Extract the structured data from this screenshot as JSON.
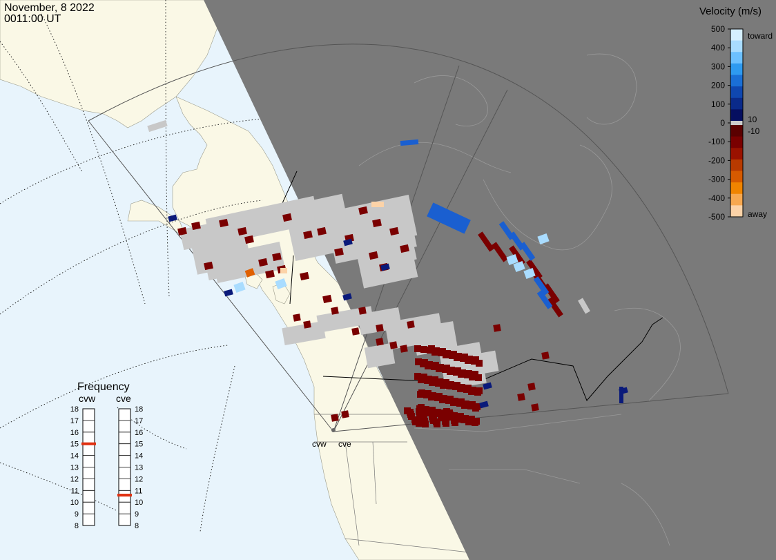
{
  "header": {
    "date": "November, 8 2022",
    "time": "0011:00 UT"
  },
  "velocity_scale": {
    "title": "Velocity (m/s)",
    "ticks": [
      "500",
      "400",
      "300",
      "200",
      "100",
      "0",
      "-100",
      "-200",
      "-300",
      "-400",
      "-500"
    ],
    "pos_label": "10",
    "neg_label": "-10",
    "toward_label": "toward",
    "away_label": "away",
    "colors_toward": [
      "#d6f0ff",
      "#a9dcff",
      "#6cc0ff",
      "#2e9af0",
      "#1a6fd6",
      "#0f47b0",
      "#0a2a8a",
      "#050f60"
    ],
    "colors_away": [
      "#5a0000",
      "#7a0000",
      "#9a1200",
      "#b83a00",
      "#d65a00",
      "#f08400",
      "#f7a850",
      "#fcd3a8"
    ]
  },
  "frequency": {
    "title": "Frequency",
    "radar_left": "cvw",
    "radar_right": "cve",
    "ticks": [
      "18",
      "17",
      "16",
      "15",
      "14",
      "13",
      "12",
      "11",
      "10",
      "9",
      "8"
    ],
    "cvw_value_mhz": 15,
    "cve_value_mhz": 10.6,
    "marker_color": "#e03010"
  },
  "radar_labels": {
    "cvw": "cvw",
    "cve": "cve"
  },
  "colors": {
    "ocean": "#e8f4fc",
    "land": "#faf8e6",
    "night": "#7a7a7a",
    "ground_scatter": "#c8c8c8"
  }
}
